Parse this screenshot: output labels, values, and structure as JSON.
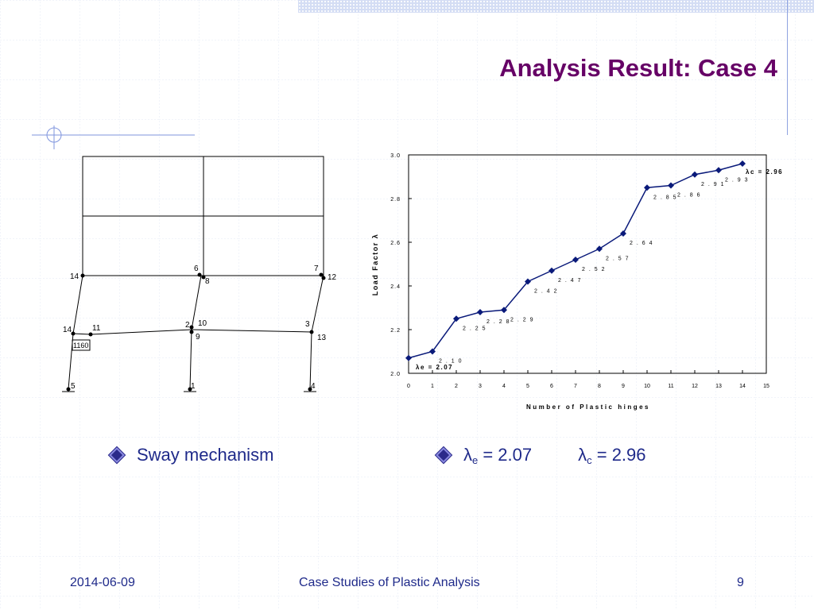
{
  "slide": {
    "title": "Analysis Result: Case 4",
    "bullets": {
      "left": "Sway mechanism",
      "lambda_symbol": "λ",
      "lambda_e_sub": "e",
      "lambda_e_value": " = 2.07",
      "lambda_c_sub": "c",
      "lambda_c_value": " = 2.96"
    },
    "footer": {
      "date": "2014-06-09",
      "center": "Case Studies of Plastic Analysis",
      "page": "9"
    }
  },
  "frame_labels": {
    "n14_top": "14",
    "n6": "6",
    "n8": "8",
    "n7": "7",
    "n12": "12",
    "n14_mid": "14",
    "n11": "11",
    "n2": "2",
    "n10": "10",
    "n9": "9",
    "n3": "3",
    "n13": "13",
    "n5": "5",
    "n1": "1",
    "n4": "4",
    "load_box": "1160"
  },
  "chart_data": {
    "type": "line",
    "xlabel": "Number of Plastic hinges",
    "ylabel": "Load Factor λ",
    "xlim": [
      0,
      15
    ],
    "ylim": [
      2.0,
      3.0
    ],
    "xticks": [
      "0",
      "1",
      "2",
      "3",
      "4",
      "5",
      "6",
      "7",
      "8",
      "9",
      "10",
      "11",
      "12",
      "13",
      "14",
      "15"
    ],
    "yticks": [
      "2.0",
      "2.2",
      "2.4",
      "2.6",
      "2.8",
      "3.0"
    ],
    "grid": false,
    "series": [
      {
        "x": [
          0,
          1,
          2,
          3,
          4,
          5,
          6,
          7,
          8,
          9,
          10,
          11,
          12,
          13,
          14
        ],
        "values": [
          2.07,
          2.1,
          2.25,
          2.28,
          2.29,
          2.42,
          2.47,
          2.52,
          2.57,
          2.64,
          2.85,
          2.86,
          2.91,
          2.93,
          2.96
        ]
      }
    ],
    "point_labels": [
      "",
      "2.10",
      "2.25",
      "2.28",
      "2.29",
      "2.42",
      "2.47",
      "2.52",
      "2.57",
      "2.64",
      "2.85",
      "2.86",
      "2.91",
      "2.93",
      ""
    ],
    "annotations": {
      "start": "λe = 2.07",
      "end": "λc = 2.96"
    },
    "line_color": "#0a1a7a"
  }
}
